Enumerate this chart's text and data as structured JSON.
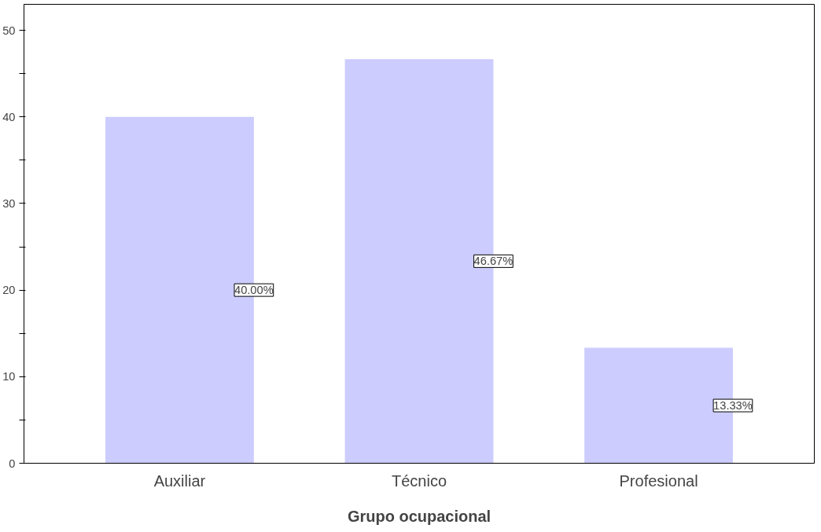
{
  "chart_data": {
    "type": "bar",
    "xlabel": "Grupo ocupacional",
    "categories": [
      "Auxiliar",
      "Técnico",
      "Profesional"
    ],
    "values": [
      40,
      46.67,
      13.33
    ],
    "value_labels": [
      "40.00%",
      "46.67%",
      "13.33%"
    ],
    "color": "#ccccff",
    "ylim": [
      0,
      53
    ],
    "yticks": [
      0,
      {
        "value": 5,
        "label": null
      },
      10,
      {
        "value": 15,
        "label": null
      },
      20,
      {
        "value": 25,
        "label": null
      },
      30,
      {
        "value": 35,
        "label": null
      },
      40,
      {
        "value": 45,
        "label": null
      },
      50
    ],
    "grid": false
  }
}
